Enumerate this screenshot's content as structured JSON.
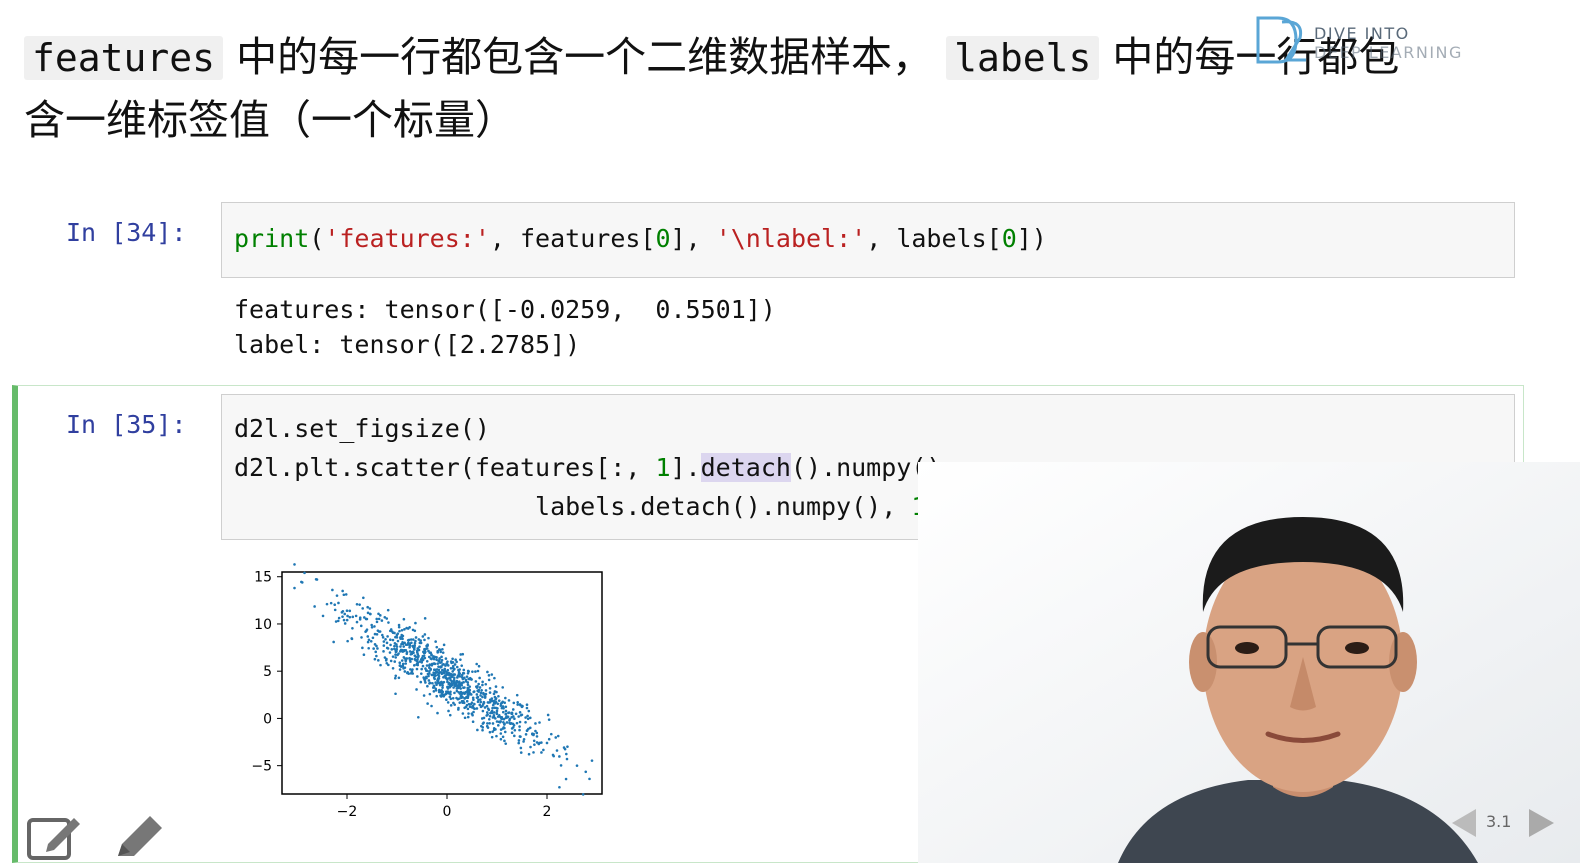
{
  "heading": {
    "code1": "features",
    "text1": " 中的每一行都包含一个二维数据样本， ",
    "code2": "labels",
    "text2": " 中的每一行都包",
    "line2": "含一维标签值（一个标量）"
  },
  "logo": {
    "line1": "DIVE INTO",
    "line2": "DEEP LEARNING"
  },
  "cell34": {
    "prompt": "In [34]:",
    "code": {
      "fn": "print",
      "p1": "(",
      "s1": "'features:'",
      "p2": ", features[",
      "n1": "0",
      "p3": "], ",
      "s2": "'\\nlabel:'",
      "p4": ", labels[",
      "n2": "0",
      "p5": "])"
    },
    "output_line1": "features: tensor([-0.0259,  0.5501])",
    "output_line2": "label: tensor([2.2785])"
  },
  "cell35": {
    "prompt": "In [35]:",
    "line1": "d2l.set_figsize()",
    "line2": {
      "a": "d2l.plt.scatter(features[:, ",
      "n1": "1",
      "b": "].",
      "hl": "detach",
      "c": "().numpy(),"
    },
    "line3": {
      "indent": "                    ",
      "a": "labels.detach().numpy(), ",
      "n1": "1",
      "b": ");"
    }
  },
  "chart_data": {
    "type": "scatter",
    "title": "",
    "xlabel": "",
    "ylabel": "",
    "xlim": [
      -3.3,
      3.1
    ],
    "ylim": [
      -8,
      15.5
    ],
    "xticks": [
      -2,
      0,
      2
    ],
    "yticks": [
      15,
      10,
      5,
      0,
      -5
    ],
    "grid": false,
    "color": "#1f77b4",
    "points_described": "1000 points, y = 4.2 - 3.4 * x plus noise (std ~1.5), x ~ N(0,1)",
    "sample_points": [
      [
        -3.05,
        13.8
      ],
      [
        -2.6,
        14.7
      ],
      [
        -2.4,
        12.1
      ],
      [
        -2.2,
        13.0
      ],
      [
        -2.0,
        11.4
      ],
      [
        -1.8,
        10.2
      ],
      [
        -1.6,
        9.4
      ],
      [
        -1.4,
        8.9
      ],
      [
        -1.2,
        8.0
      ],
      [
        -1.0,
        7.6
      ],
      [
        -0.8,
        7.0
      ],
      [
        -0.6,
        6.1
      ],
      [
        -0.4,
        5.6
      ],
      [
        -0.2,
        4.9
      ],
      [
        0.0,
        4.2
      ],
      [
        0.2,
        3.5
      ],
      [
        0.4,
        2.8
      ],
      [
        0.6,
        2.2
      ],
      [
        0.8,
        1.3
      ],
      [
        1.0,
        0.8
      ],
      [
        1.2,
        0.1
      ],
      [
        1.4,
        -0.5
      ],
      [
        1.6,
        -1.3
      ],
      [
        1.8,
        -1.9
      ],
      [
        2.0,
        -2.6
      ],
      [
        2.2,
        -3.4
      ],
      [
        2.4,
        -4.3
      ],
      [
        2.6,
        -5.0
      ],
      [
        2.85,
        -6.4
      ]
    ]
  },
  "toolbar": {
    "edit_icon": "edit-icon",
    "pencil_icon": "pencil-icon"
  },
  "nav": {
    "slide_label": "3.1"
  },
  "colors": {
    "prompt": "#303f9f",
    "string": "#ba2121",
    "number": "#008000",
    "active_border": "#66bb6a"
  }
}
